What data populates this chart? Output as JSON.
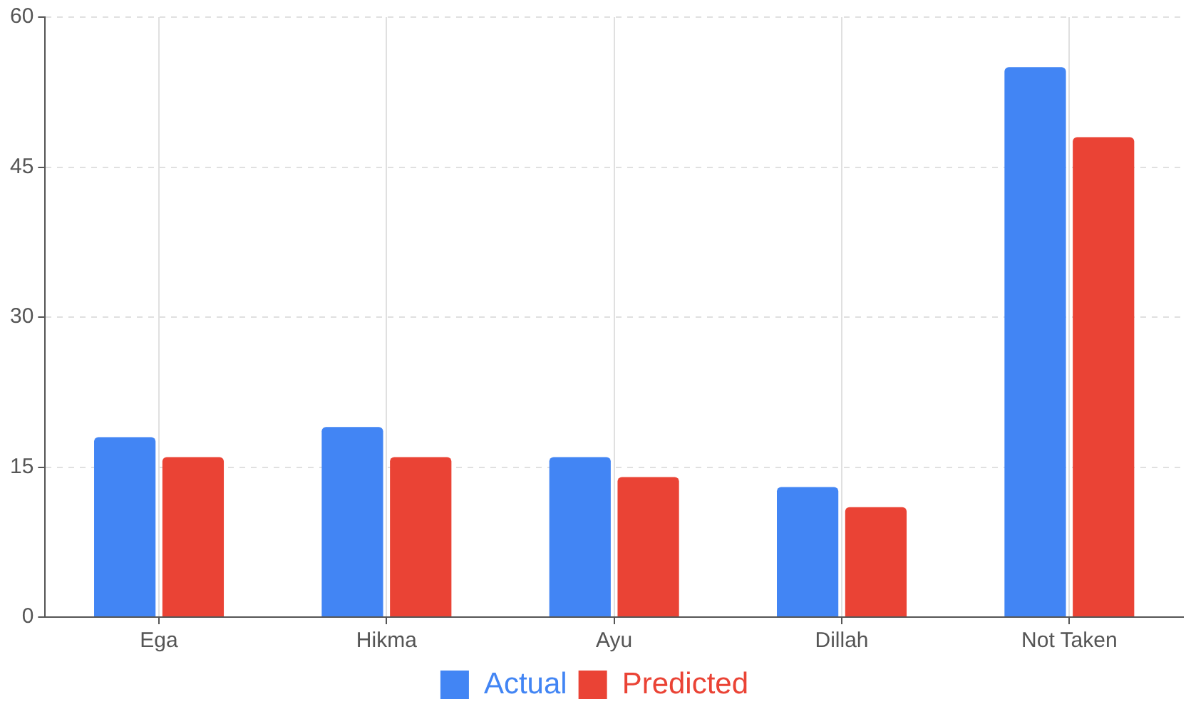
{
  "chart_data": {
    "type": "bar",
    "categories": [
      "Ega",
      "Hikma",
      "Ayu",
      "Dillah",
      "Not Taken"
    ],
    "series": [
      {
        "name": "Actual",
        "color": "#4285f4",
        "values": [
          18,
          19,
          16,
          13,
          55
        ]
      },
      {
        "name": "Predicted",
        "color": "#ea4335",
        "values": [
          16,
          16,
          14,
          11,
          48
        ]
      }
    ],
    "ylim": [
      0,
      60
    ],
    "yticks": [
      0,
      15,
      30,
      45,
      60
    ],
    "grid": true,
    "legend": "bottom"
  }
}
